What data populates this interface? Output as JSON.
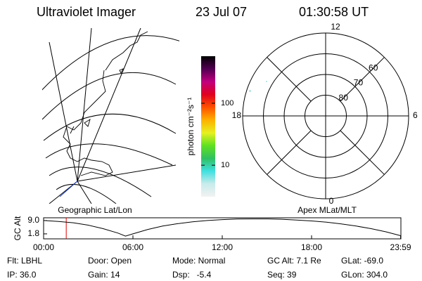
{
  "header": {
    "instrument": "Ultraviolet Imager",
    "date": "23 Jul 07",
    "time": "01:30:58 UT"
  },
  "map": {
    "label": "Geographic Lat/Lon"
  },
  "colorbar": {
    "label": "photon cm⁻²s⁻¹",
    "scale": "log",
    "lim": [
      3.1,
      575
    ],
    "ticks": [
      10,
      100
    ],
    "colors": [
      "#f2f2f2",
      "#c8ecec",
      "#40e0e0",
      "#30c060",
      "#60e020",
      "#e8f020",
      "#ffb000",
      "#ff5000",
      "#e00020",
      "#c00080",
      "#500050",
      "#000000"
    ]
  },
  "polar": {
    "label": "Apex MLat/MLT",
    "lim": 50,
    "rings": [
      60,
      70,
      80
    ],
    "hours": [
      "12",
      "6",
      "0",
      "18"
    ]
  },
  "chart_data": {
    "type": "line",
    "ylabel": "GC Alt",
    "x": [
      0,
      1,
      2,
      3,
      4,
      5,
      5.5,
      6,
      7,
      8,
      9,
      10,
      11,
      12,
      13,
      14,
      15,
      16,
      17,
      18,
      19,
      20,
      21,
      22,
      23,
      23.98
    ],
    "values": [
      9.0,
      8.5,
      7.8,
      6.5,
      4.6,
      2.2,
      0.6,
      1.8,
      4.2,
      6.0,
      7.3,
      8.3,
      9.0,
      9.5,
      9.8,
      9.9,
      9.9,
      9.7,
      9.3,
      8.8,
      8.1,
      7.2,
      6.0,
      4.6,
      2.9,
      0.8
    ],
    "color": "#000000",
    "marker_x": 1.52,
    "marker_color": "#e00000",
    "xlim": [
      0,
      24
    ],
    "ylim": [
      -0.9,
      10.5
    ],
    "xticks": [
      {
        "value": 0,
        "label": "00:00"
      },
      {
        "value": 6,
        "label": "06:00"
      },
      {
        "value": 12,
        "label": "12:00"
      },
      {
        "value": 18,
        "label": "18:00"
      },
      {
        "value": 23.98,
        "label": "23:59"
      }
    ],
    "yticks": [
      {
        "value": 9,
        "label": "9.0"
      },
      {
        "value": 1.8,
        "label": "1.8"
      }
    ]
  },
  "footer": {
    "rows": [
      [
        "Flt: LBHL",
        "Door: Open",
        "Mode: Normal",
        "GC Alt: 7.1 Re",
        "GLat: -69.0"
      ],
      [
        "IP: 36.0",
        "Gain: 14",
        "Dsp:   -5.4",
        "Seq: 39",
        "GLon: 304.0"
      ]
    ]
  }
}
